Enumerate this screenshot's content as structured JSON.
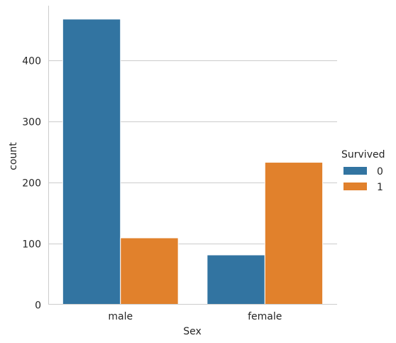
{
  "chart_data": {
    "type": "bar",
    "categories": [
      "male",
      "female"
    ],
    "series": [
      {
        "name": "0",
        "values": [
          468,
          81
        ],
        "color": "#3274a1"
      },
      {
        "name": "1",
        "values": [
          109,
          233
        ],
        "color": "#e1812c"
      }
    ],
    "xlabel": "Sex",
    "ylabel": "count",
    "ylim": [
      0,
      490
    ],
    "yticks": [
      0,
      100,
      200,
      300,
      400
    ],
    "legend": {
      "title": "Survived",
      "placement": "right"
    },
    "grid": "horizontal"
  }
}
